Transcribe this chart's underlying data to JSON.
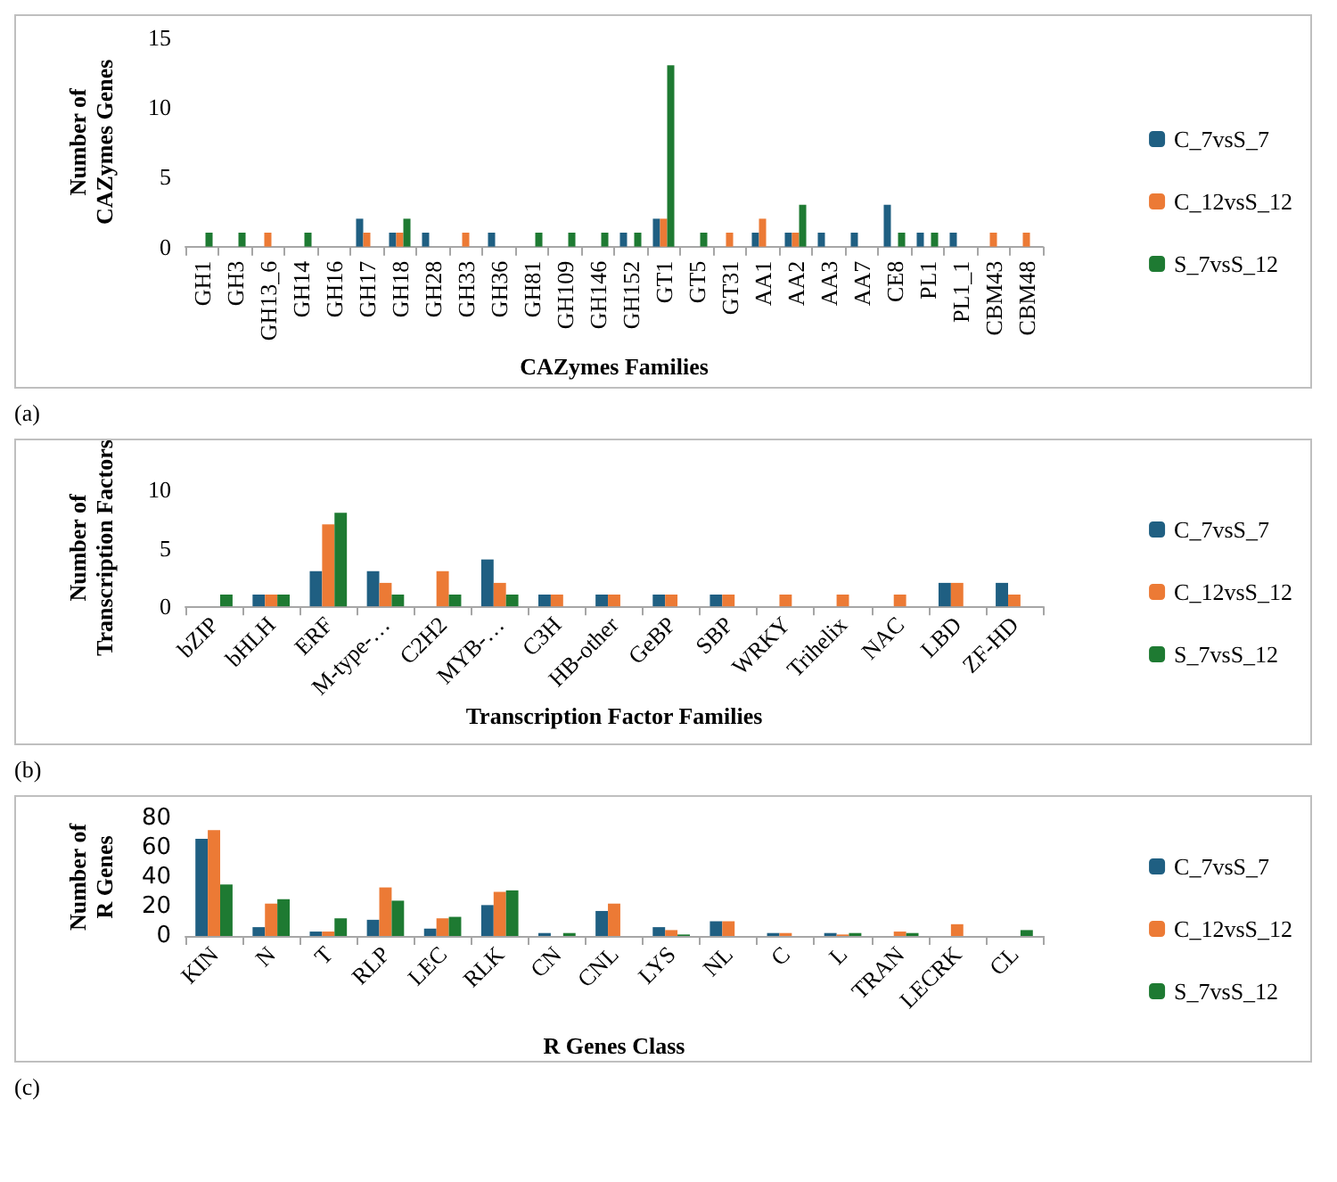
{
  "chart_data": [
    {
      "type": "bar",
      "xlabel": "CAZymes Families",
      "ylabel": "Number of CAZymes Genes",
      "annotations": [
        "(a)"
      ],
      "categories": [
        "GH1",
        "GH3",
        "GH13_6",
        "GH14",
        "GH16",
        "GH17",
        "GH18",
        "GH28",
        "GH33",
        "GH36",
        "GH81",
        "GH109",
        "GH146",
        "GH152",
        "GT1",
        "GT5",
        "GT31",
        "AA1",
        "AA2",
        "AA3",
        "AA7",
        "CE8",
        "PL1",
        "PL1_1",
        "CBM43",
        "CBM48"
      ],
      "ylim": [
        0,
        15
      ],
      "yticks": [
        0,
        5,
        10,
        15
      ],
      "grid": false,
      "legend": "right",
      "series": [
        {
          "name": "C_7vsS_7",
          "color": "#1f5f82",
          "values": [
            null,
            null,
            null,
            null,
            null,
            2,
            1,
            1,
            null,
            1,
            null,
            null,
            null,
            1,
            2,
            null,
            null,
            1,
            1,
            1,
            1,
            3,
            1,
            1,
            null,
            null
          ]
        },
        {
          "name": "C_12vsS_12",
          "color": "#ec7a35",
          "values": [
            null,
            null,
            1,
            null,
            null,
            1,
            1,
            null,
            1,
            null,
            null,
            null,
            null,
            null,
            2,
            null,
            1,
            2,
            1,
            null,
            null,
            null,
            null,
            null,
            1,
            1
          ]
        },
        {
          "name": "S_7vsS_12",
          "color": "#1e7a32",
          "values": [
            1,
            1,
            null,
            1,
            null,
            null,
            2,
            null,
            null,
            null,
            1,
            1,
            1,
            1,
            13,
            1,
            null,
            null,
            3,
            null,
            null,
            1,
            1,
            null,
            null,
            null
          ]
        }
      ]
    },
    {
      "type": "bar",
      "xlabel": "Transcription Factor Families",
      "ylabel": "Number of Transcription Factors",
      "annotations": [
        "(b)"
      ],
      "categories": [
        "bZIP",
        "bHLH",
        "ERF",
        "M-type-…",
        "C2H2",
        "MYB-…",
        "C3H",
        "HB-other",
        "GeBP",
        "SBP",
        "WRKY",
        "Trihelix",
        "NAC",
        "LBD",
        "ZF-HD"
      ],
      "ylim": [
        0,
        10
      ],
      "yticks": [
        0,
        5,
        10
      ],
      "grid": false,
      "legend": "right",
      "series": [
        {
          "name": "C_7vsS_7",
          "color": "#1f5f82",
          "values": [
            null,
            1,
            3,
            3,
            null,
            4,
            1,
            1,
            1,
            1,
            null,
            null,
            null,
            2,
            2
          ]
        },
        {
          "name": "C_12vsS_12",
          "color": "#ec7a35",
          "values": [
            null,
            1,
            7,
            2,
            3,
            2,
            1,
            1,
            1,
            1,
            1,
            1,
            1,
            2,
            1
          ]
        },
        {
          "name": "S_7vsS_12",
          "color": "#1e7a32",
          "values": [
            1,
            1,
            8,
            1,
            1,
            1,
            null,
            null,
            null,
            null,
            null,
            null,
            null,
            null,
            null
          ]
        }
      ]
    },
    {
      "type": "bar",
      "xlabel": "R Genes Class",
      "ylabel": "Number of R Genes",
      "annotations": [
        "(c)"
      ],
      "categories": [
        "KIN",
        "N",
        "T",
        "RLP",
        "LEC",
        "RLK",
        "CN",
        "CNL",
        "LYS",
        "NL",
        "C",
        "L",
        "TRAN",
        "LECRK",
        "CL"
      ],
      "ylim": [
        0,
        80
      ],
      "yticks": [
        0,
        20,
        40,
        60,
        80
      ],
      "grid": false,
      "legend": "right",
      "series": [
        {
          "name": "C_7vsS_7",
          "color": "#1f5f82",
          "values": [
            66,
            6,
            3,
            11,
            5,
            21,
            2,
            17,
            6,
            10,
            2,
            2,
            null,
            null,
            null
          ]
        },
        {
          "name": "C_12vsS_12",
          "color": "#ec7a35",
          "values": [
            72,
            22,
            3,
            33,
            12,
            30,
            null,
            22,
            4,
            10,
            2,
            1,
            3,
            8,
            null
          ]
        },
        {
          "name": "S_7vsS_12",
          "color": "#1e7a32",
          "values": [
            35,
            25,
            12,
            24,
            13,
            31,
            2,
            null,
            1,
            null,
            null,
            2,
            2,
            null,
            4
          ]
        }
      ]
    }
  ]
}
